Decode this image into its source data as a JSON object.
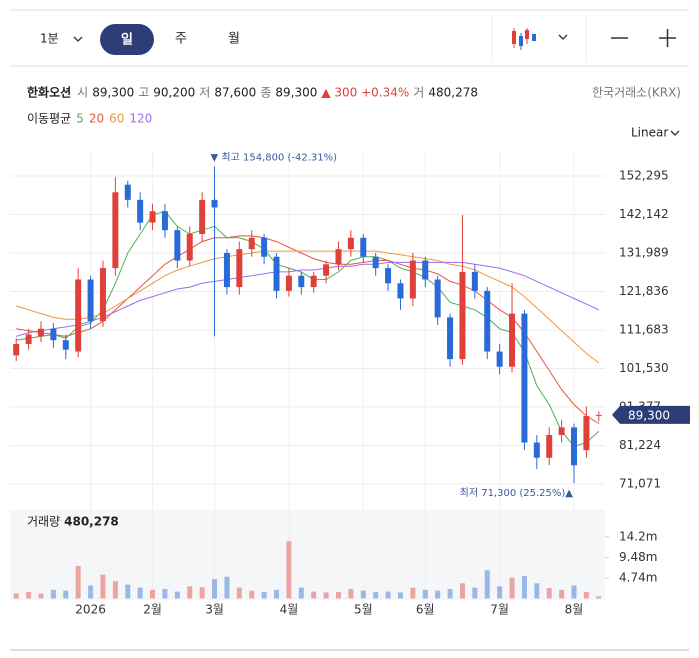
{
  "toolbar": {
    "intervals": [
      "1분",
      "일",
      "주",
      "월"
    ],
    "scale": "Linear"
  },
  "info": {
    "name": "한화오션",
    "fields": [
      {
        "label": "시",
        "value": "89,300"
      },
      {
        "label": "고",
        "value": "90,200"
      },
      {
        "label": "저",
        "value": "87,600"
      },
      {
        "label": "종",
        "value": "89,300"
      }
    ],
    "change": "▲ 300 +0.34%",
    "volume_label": "거",
    "volume": "480,278",
    "exchange": "한국거래소(KRX)"
  },
  "chart_data": {
    "type": "candlestick",
    "legend_title": "이동평균",
    "categories": [
      null,
      null,
      null,
      null,
      null,
      null,
      "2026",
      null,
      null,
      null,
      null,
      "2월",
      null,
      null,
      null,
      null,
      "3월",
      null,
      null,
      null,
      null,
      null,
      "4월",
      null,
      null,
      null,
      null,
      null,
      "5월",
      null,
      null,
      null,
      null,
      "6월",
      null,
      null,
      null,
      null,
      null,
      "7월",
      null,
      null,
      null,
      null,
      null,
      "8월",
      null,
      null
    ],
    "open": [
      105000,
      108000,
      110000,
      112000,
      109000,
      106000,
      125000,
      114000,
      128000,
      150000,
      146000,
      140000,
      143000,
      138000,
      130000,
      137000,
      146000,
      132000,
      123000,
      133000,
      136000,
      131000,
      122000,
      126000,
      123000,
      126000,
      129000,
      133000,
      136000,
      131000,
      128000,
      124000,
      120000,
      130000,
      125000,
      115000,
      104000,
      127000,
      122000,
      106000,
      102000,
      116000,
      82000,
      78000,
      84000,
      86000,
      80000,
      89300
    ],
    "high": [
      109500,
      112000,
      114000,
      113500,
      110500,
      128000,
      126000,
      130000,
      152000,
      151000,
      148000,
      145000,
      145000,
      139000,
      139000,
      148000,
      154800,
      133000,
      135000,
      138000,
      137000,
      132000,
      128000,
      127000,
      127000,
      130000,
      135000,
      138000,
      137000,
      132000,
      129000,
      125000,
      132000,
      131000,
      126000,
      116000,
      142000,
      129000,
      123000,
      108000,
      124000,
      117000,
      84000,
      86000,
      88000,
      87000,
      91500,
      90200
    ],
    "low": [
      103500,
      106500,
      108500,
      107000,
      104000,
      104500,
      112000,
      112500,
      126000,
      144000,
      138000,
      138000,
      136000,
      128000,
      128500,
      135000,
      110000,
      121000,
      121000,
      131000,
      129000,
      120000,
      120500,
      121000,
      121500,
      124000,
      127500,
      131000,
      129500,
      126000,
      122000,
      117000,
      118000,
      123000,
      113000,
      102000,
      102500,
      120000,
      104000,
      100000,
      100500,
      80000,
      75000,
      76000,
      82000,
      71300,
      78000,
      87600
    ],
    "close": [
      108000,
      110500,
      112000,
      109000,
      106500,
      125000,
      114000,
      128000,
      148000,
      146000,
      140000,
      143000,
      138000,
      130000,
      137000,
      146000,
      144000,
      123000,
      133000,
      136000,
      131000,
      122000,
      126000,
      123000,
      126000,
      129000,
      133000,
      136000,
      131000,
      128000,
      124000,
      120000,
      130000,
      125000,
      115000,
      104000,
      127000,
      122000,
      106000,
      102000,
      116000,
      82000,
      78000,
      84000,
      86000,
      76000,
      89000,
      89300
    ],
    "up_color": "#e0403a",
    "down_color": "#2a6ad6",
    "series": [
      {
        "name": "5",
        "color": "#4caf50",
        "values": [
          109000,
          109500,
          110000,
          110500,
          109500,
          112500,
          113500,
          117000,
          124000,
          132000,
          137000,
          142000,
          143000,
          139000,
          137000,
          138000,
          139000,
          136000,
          136000,
          135000,
          133000,
          129000,
          128000,
          127000,
          125000,
          125000,
          127000,
          130000,
          131000,
          131000,
          130000,
          128000,
          127000,
          125500,
          123000,
          119000,
          118000,
          117000,
          115000,
          112000,
          111000,
          106000,
          97000,
          92000,
          85000,
          81000,
          82000,
          85000
        ]
      },
      {
        "name": "20",
        "color": "#e8553f",
        "values": [
          112000,
          111500,
          111000,
          110500,
          110000,
          111000,
          112000,
          114000,
          117000,
          120000,
          123000,
          126000,
          129000,
          131000,
          133000,
          135000,
          136000,
          136000,
          136500,
          136500,
          136000,
          135000,
          133500,
          132000,
          130500,
          129500,
          129000,
          129000,
          129500,
          130000,
          130000,
          129000,
          128000,
          127500,
          126500,
          124500,
          123500,
          122000,
          119500,
          117000,
          115000,
          111000,
          106000,
          101000,
          96000,
          92000,
          89000,
          87000
        ]
      },
      {
        "name": "60",
        "color": "#f0983c",
        "values": [
          118000,
          117000,
          116000,
          115000,
          114500,
          114500,
          115000,
          116000,
          118000,
          120000,
          122000,
          124000,
          126000,
          127500,
          128500,
          129500,
          130500,
          131000,
          131500,
          132000,
          132500,
          132500,
          132500,
          132500,
          132500,
          132500,
          132500,
          132500,
          132500,
          132500,
          132000,
          131500,
          131000,
          130500,
          130000,
          129000,
          128500,
          127500,
          126000,
          124500,
          123000,
          120500,
          117500,
          114500,
          111500,
          108500,
          105500,
          103000
        ]
      },
      {
        "name": "120",
        "color": "#9a6cf0",
        "values": [
          110000,
          111000,
          111500,
          112000,
          112500,
          113000,
          114000,
          115000,
          116500,
          118000,
          119500,
          120500,
          121500,
          122500,
          123000,
          124000,
          124500,
          125000,
          125500,
          126000,
          126500,
          127000,
          127000,
          127500,
          127500,
          128000,
          128500,
          128500,
          129000,
          129000,
          129500,
          129500,
          129500,
          129500,
          129500,
          129500,
          129500,
          129000,
          128500,
          128000,
          127000,
          126000,
          124500,
          123000,
          121500,
          120000,
          118500,
          117000
        ]
      }
    ],
    "ylim": [
      68170,
      159150
    ],
    "yticks": [
      {
        "value": 71071,
        "label": "71,071"
      },
      {
        "value": 81224,
        "label": "81,224"
      },
      {
        "value": 91377,
        "label": "91,377"
      },
      {
        "value": 101530,
        "label": "101,530"
      },
      {
        "value": 111683,
        "label": "111,683"
      },
      {
        "value": 121836,
        "label": "121,836"
      },
      {
        "value": 131989,
        "label": "131,989"
      },
      {
        "value": 142142,
        "label": "142,142"
      },
      {
        "value": 152295,
        "label": "152,295"
      }
    ],
    "grid": true,
    "max_annotation": "▼ 최고 154,800 (-42.31%)",
    "min_annotation": "최저 71,300 (25.25%)▲",
    "volume_title": "거래량",
    "volume_values": [
      1.2,
      1.5,
      1.1,
      2.0,
      1.8,
      7.5,
      3.0,
      5.5,
      4.0,
      3.2,
      2.5,
      2.0,
      2.2,
      1.6,
      2.8,
      2.6,
      4.5,
      5.0,
      2.5,
      1.8,
      1.5,
      2.0,
      13.2,
      2.5,
      1.6,
      1.4,
      1.5,
      2.2,
      1.8,
      1.5,
      1.6,
      1.4,
      2.5,
      2.0,
      1.8,
      2.2,
      3.5,
      2.5,
      6.5,
      2.8,
      4.8,
      5.2,
      3.5,
      2.4,
      2.0,
      3.0,
      1.5,
      0.480278
    ],
    "volume_ylim": [
      0,
      20.4
    ],
    "volume_yticks": [
      {
        "value": 4.74,
        "label": "4.74m"
      },
      {
        "value": 9.48,
        "label": "9.48m"
      },
      {
        "value": 14.2,
        "label": "14.2m"
      }
    ]
  }
}
